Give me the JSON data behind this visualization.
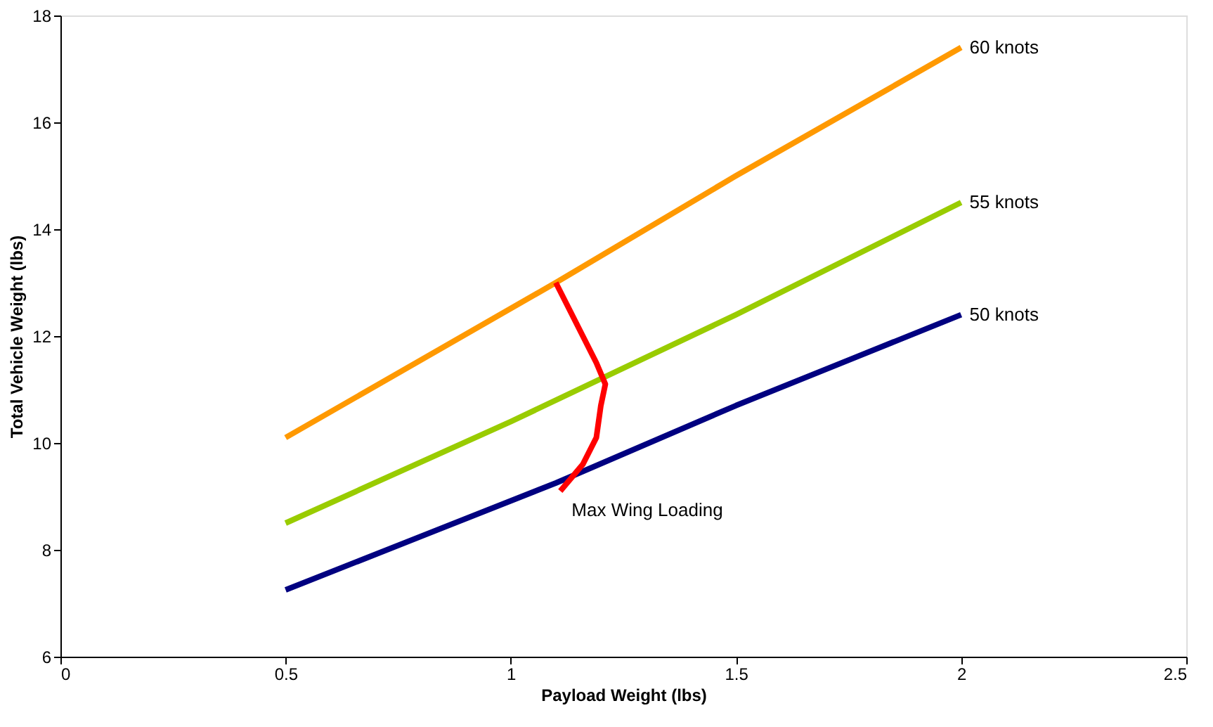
{
  "chart_data": {
    "type": "line",
    "xlabel": "Payload Weight (lbs)",
    "ylabel": "Total Vehicle Weight (lbs)",
    "xlim": [
      0,
      2.5
    ],
    "xticks": [
      0,
      0.5,
      1,
      1.5,
      2,
      2.5
    ],
    "ylim": [
      6,
      18
    ],
    "yticks": [
      6,
      8,
      10,
      12,
      14,
      16,
      18
    ],
    "grid": false,
    "marker": "none",
    "line_style": "solid",
    "series": [
      {
        "name": "60 knots",
        "color": "#ff9900",
        "x": [
          0.5,
          1.1,
          1.5,
          2.0
        ],
        "values": [
          10.1,
          13.0,
          15.0,
          17.4
        ]
      },
      {
        "name": "55 knots",
        "color": "#99cc00",
        "x": [
          0.5,
          1.0,
          1.5,
          2.0
        ],
        "values": [
          8.5,
          10.4,
          12.4,
          14.5
        ]
      },
      {
        "name": "50 knots",
        "color": "#000080",
        "x": [
          0.5,
          1.1,
          1.5,
          2.0
        ],
        "values": [
          7.25,
          9.25,
          10.7,
          12.4
        ]
      },
      {
        "color": "#ff0000",
        "x": [
          1.1,
          1.16,
          1.19,
          1.21,
          1.2,
          1.19,
          1.16,
          1.11
        ],
        "values": [
          13.0,
          12.0,
          11.5,
          11.1,
          10.7,
          10.1,
          9.6,
          9.1
        ]
      }
    ],
    "annotations": [
      "Max Wing Loading"
    ]
  }
}
